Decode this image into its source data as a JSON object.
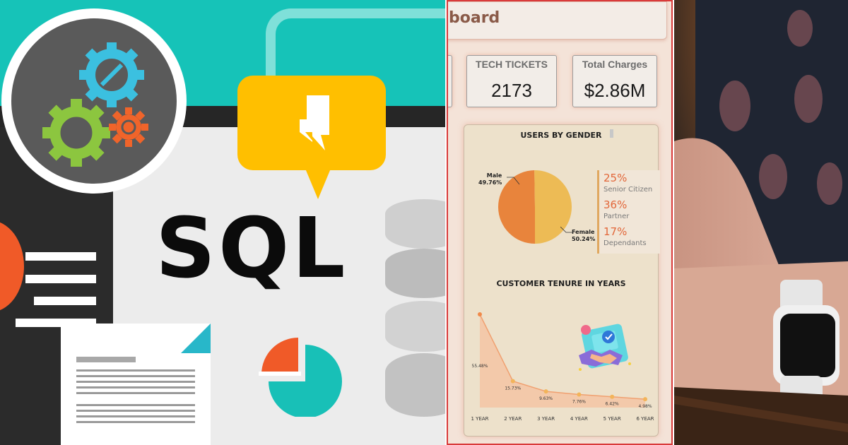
{
  "illustration": {
    "sql_text": "SQL"
  },
  "dashboard": {
    "title": "board",
    "kpis": [
      {
        "label": "TECH TICKETS",
        "value": "2173"
      },
      {
        "label": "Total Charges",
        "value": "$2.86M"
      }
    ],
    "gender_chart": {
      "title": "USERS BY GENDER",
      "male_label": "Male",
      "male_pct": "49.76%",
      "female_label": "Female",
      "female_pct": "50.24%"
    },
    "stats": [
      {
        "pct": "25%",
        "label": "Senior Citizen"
      },
      {
        "pct": "36%",
        "label": "Partner"
      },
      {
        "pct": "17%",
        "label": "Dependants"
      }
    ],
    "tenure_chart_title": "CUSTOMER TENURE IN YEARS"
  },
  "chart_data": [
    {
      "type": "pie",
      "title": "USERS BY GENDER",
      "categories": [
        "Male",
        "Female"
      ],
      "values": [
        49.76,
        50.24
      ],
      "colors": [
        "#e8843c",
        "#edbb55"
      ]
    },
    {
      "type": "area",
      "title": "CUSTOMER TENURE IN YEARS",
      "categories": [
        "1 YEAR",
        "2 YEAR",
        "3 YEAR",
        "4 YEAR",
        "5 YEAR",
        "6 YEAR"
      ],
      "values": [
        55.48,
        15.73,
        9.63,
        7.76,
        6.42,
        4.98
      ],
      "data_labels": [
        "55.48%",
        "15.73%",
        "9.63%",
        "7.76%",
        "6.42%",
        "4.98%"
      ],
      "color": "#f0a070"
    }
  ],
  "colors": {
    "teal": "#16c3b8",
    "yellow": "#ffbf00",
    "accent_orange": "#e2673a",
    "dashboard_bg": "#f4e3d8",
    "border_red": "#d93a3a"
  }
}
